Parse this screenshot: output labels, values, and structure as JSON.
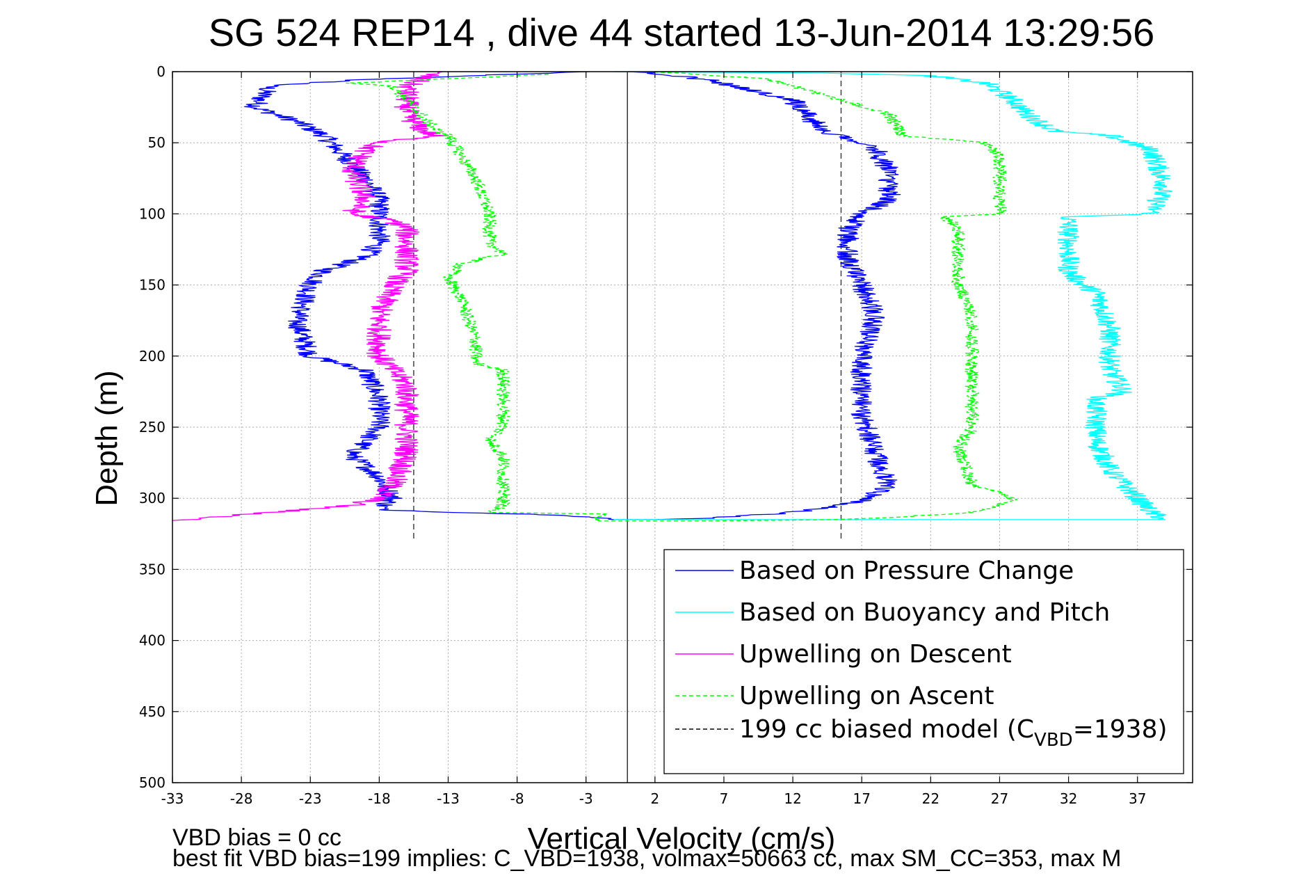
{
  "chart_data": {
    "type": "line",
    "title": "SG 524   REP14  , dive 44 started 13-Jun-2014 13:29:56",
    "xlabel": "Vertical Velocity (cm/s)",
    "ylabel": "Depth (m)",
    "xlim": [
      -33,
      41
    ],
    "ylim": [
      500,
      0
    ],
    "y_reversed": true,
    "grid": true,
    "xticks": [
      -33,
      -28,
      -23,
      -18,
      -13,
      -8,
      -3,
      2,
      7,
      12,
      17,
      22,
      27,
      32,
      37
    ],
    "yticks": [
      0,
      50,
      100,
      150,
      200,
      250,
      300,
      350,
      400,
      450,
      500
    ],
    "legend_position": "bottom-right",
    "legend": [
      {
        "text": "Based on Pressure Change",
        "color": "#0000ff",
        "dash": "solid"
      },
      {
        "text": "Based on Buoyancy and Pitch",
        "color": "#00ffff",
        "dash": "solid"
      },
      {
        "text": "Upwelling on Descent",
        "color": "#ff00ff",
        "dash": "solid"
      },
      {
        "text": "Upwelling on Ascent",
        "color": "#00ff00",
        "dash": "dashed"
      },
      {
        "text": "199 cc biased model (C",
        "sub": "VBD",
        "suffix": "=1938)",
        "color": "#000000",
        "dash": "dashed"
      }
    ],
    "zero_line_x": 0,
    "model_lines_x": [
      -15.5,
      15.5
    ],
    "series": [
      {
        "color": "#0000ff",
        "dash": "solid",
        "noise": 0.8,
        "points": [
          [
            -3,
            0
          ],
          [
            -12,
            3
          ],
          [
            -20,
            6
          ],
          [
            -26,
            10
          ],
          [
            -27,
            25
          ],
          [
            -24,
            35
          ],
          [
            -22,
            45
          ],
          [
            -21,
            55
          ],
          [
            -19,
            75
          ],
          [
            -18,
            90
          ],
          [
            -18,
            120
          ],
          [
            -19,
            130
          ],
          [
            -22,
            140
          ],
          [
            -23,
            150
          ],
          [
            -24,
            175
          ],
          [
            -23,
            200
          ],
          [
            -19,
            210
          ],
          [
            -18,
            230
          ],
          [
            -18,
            250
          ],
          [
            -20,
            270
          ],
          [
            -18,
            285
          ],
          [
            -17,
            300
          ],
          [
            -18,
            308
          ],
          [
            -12,
            310
          ],
          [
            -4,
            312
          ],
          [
            -1,
            315
          ],
          [
            0,
            315
          ],
          [
            2,
            315
          ],
          [
            6,
            314
          ],
          [
            12,
            310
          ],
          [
            14,
            307
          ],
          [
            16,
            304
          ],
          [
            17.5,
            300
          ],
          [
            19,
            290
          ],
          [
            18,
            270
          ],
          [
            17,
            240
          ],
          [
            17,
            200
          ],
          [
            18,
            170
          ],
          [
            17,
            150
          ],
          [
            16,
            130
          ],
          [
            16,
            110
          ],
          [
            17,
            100
          ],
          [
            19,
            90
          ],
          [
            19,
            70
          ],
          [
            18,
            55
          ],
          [
            14,
            40
          ],
          [
            12,
            20
          ],
          [
            6,
            6
          ],
          [
            3,
            2
          ],
          [
            0,
            0
          ]
        ]
      },
      {
        "color": "#00ffff",
        "dash": "solid",
        "noise": 0.8,
        "points": [
          [
            -1,
            0
          ],
          [
            15,
            1
          ],
          [
            22,
            3
          ],
          [
            26,
            8
          ],
          [
            28,
            20
          ],
          [
            29,
            30
          ],
          [
            31,
            42
          ],
          [
            35,
            45
          ],
          [
            38,
            55
          ],
          [
            39,
            80
          ],
          [
            38,
            100
          ],
          [
            32,
            102
          ],
          [
            32,
            110
          ],
          [
            32,
            140
          ],
          [
            33,
            150
          ],
          [
            34,
            155
          ],
          [
            35,
            180
          ],
          [
            35,
            210
          ],
          [
            36,
            225
          ],
          [
            34,
            230
          ],
          [
            34,
            260
          ],
          [
            35,
            280
          ],
          [
            36,
            290
          ],
          [
            37,
            300
          ],
          [
            38,
            310
          ],
          [
            39,
            315
          ],
          [
            -1,
            315
          ]
        ]
      },
      {
        "color": "#ff00ff",
        "dash": "solid",
        "noise": 0.9,
        "points": [
          [
            -14,
            0
          ],
          [
            -14.5,
            3
          ],
          [
            -16,
            10
          ],
          [
            -16,
            30
          ],
          [
            -15,
            40
          ],
          [
            -14,
            45
          ],
          [
            -18,
            50
          ],
          [
            -19,
            55
          ],
          [
            -20,
            70
          ],
          [
            -19,
            90
          ],
          [
            -20,
            100
          ],
          [
            -17,
            105
          ],
          [
            -16,
            110
          ],
          [
            -16,
            140
          ],
          [
            -17,
            150
          ],
          [
            -18,
            170
          ],
          [
            -18,
            200
          ],
          [
            -17,
            210
          ],
          [
            -16,
            220
          ],
          [
            -16,
            270
          ],
          [
            -17,
            290
          ],
          [
            -18,
            300
          ],
          [
            -20,
            305
          ],
          [
            -26,
            310
          ],
          [
            -33,
            316
          ]
        ]
      },
      {
        "color": "#00ff00",
        "dash": "dashed",
        "noise": 0.5,
        "points": [
          [
            -6,
            2
          ],
          [
            -20,
            8
          ],
          [
            -17,
            10
          ],
          [
            -16,
            20
          ],
          [
            -15,
            30
          ],
          [
            -14,
            40
          ],
          [
            -13,
            45
          ],
          [
            -12,
            60
          ],
          [
            -11,
            75
          ],
          [
            -10,
            100
          ],
          [
            -10,
            120
          ],
          [
            -9,
            128
          ],
          [
            -12,
            135
          ],
          [
            -13,
            145
          ],
          [
            -12,
            160
          ],
          [
            -11,
            190
          ],
          [
            -11,
            205
          ],
          [
            -9,
            210
          ],
          [
            -9,
            240
          ],
          [
            -9,
            250
          ],
          [
            -10,
            260
          ],
          [
            -9,
            270
          ],
          [
            -9,
            290
          ],
          [
            -9,
            305
          ],
          [
            -10,
            310
          ],
          [
            -2,
            311
          ],
          [
            -2,
            316
          ],
          [
            1,
            316
          ],
          [
            6,
            316
          ],
          [
            15,
            315
          ],
          [
            20,
            313
          ],
          [
            25,
            310
          ],
          [
            27,
            305
          ],
          [
            28,
            300
          ],
          [
            25,
            290
          ],
          [
            24,
            265
          ],
          [
            25,
            250
          ],
          [
            25,
            230
          ],
          [
            25,
            200
          ],
          [
            25,
            170
          ],
          [
            24,
            150
          ],
          [
            24,
            130
          ],
          [
            24,
            110
          ],
          [
            23,
            102
          ],
          [
            27,
            100
          ],
          [
            27,
            80
          ],
          [
            27,
            60
          ],
          [
            26,
            50
          ],
          [
            20,
            45
          ],
          [
            19,
            30
          ],
          [
            12,
            10
          ],
          [
            10,
            5
          ],
          [
            2,
            0
          ]
        ]
      }
    ]
  },
  "notes": {
    "line1": "VBD bias = 0 cc",
    "line2": "best fit VBD bias=199 implies: C_VBD=1938, volmax=50663 cc, max SM_CC=353, max M"
  }
}
